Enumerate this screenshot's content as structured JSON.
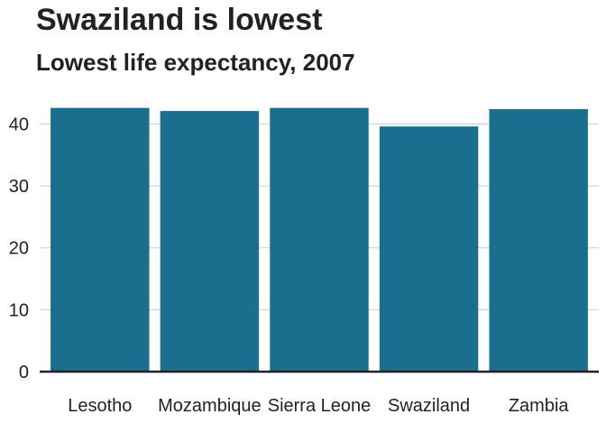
{
  "chart_data": {
    "type": "bar",
    "title": "Swaziland is lowest",
    "subtitle": "Lowest life expectancy, 2007",
    "xlabel": "",
    "ylabel": "",
    "categories": [
      "Lesotho",
      "Mozambique",
      "Sierra Leone",
      "Swaziland",
      "Zambia"
    ],
    "values": [
      42.6,
      42.1,
      42.6,
      39.6,
      42.4
    ],
    "ylim": [
      0,
      44
    ],
    "yticks": [
      0,
      10,
      20,
      30,
      40
    ],
    "grid": "horizontal",
    "legend": "none",
    "bar_color": "#1a6e8e",
    "baseline_color": "#222222",
    "grid_color": "#cbcbcb"
  }
}
